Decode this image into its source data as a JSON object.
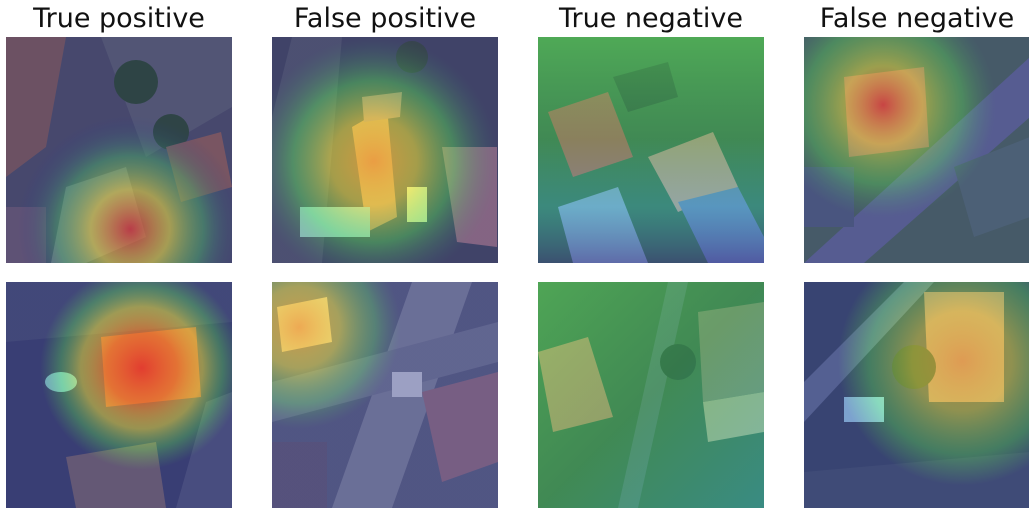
{
  "figure": {
    "columns": [
      {
        "id": "tp",
        "title": "True positive"
      },
      {
        "id": "fp",
        "title": "False positive"
      },
      {
        "id": "tn",
        "title": "True negative"
      },
      {
        "id": "fn",
        "title": "False negative"
      }
    ]
  },
  "heatmap_colors": {
    "low": "#2b2f8f",
    "mid_low": "#1fa0c8",
    "mid": "#4fd060",
    "mid_high": "#f2e23a",
    "high": "#e8372b"
  }
}
